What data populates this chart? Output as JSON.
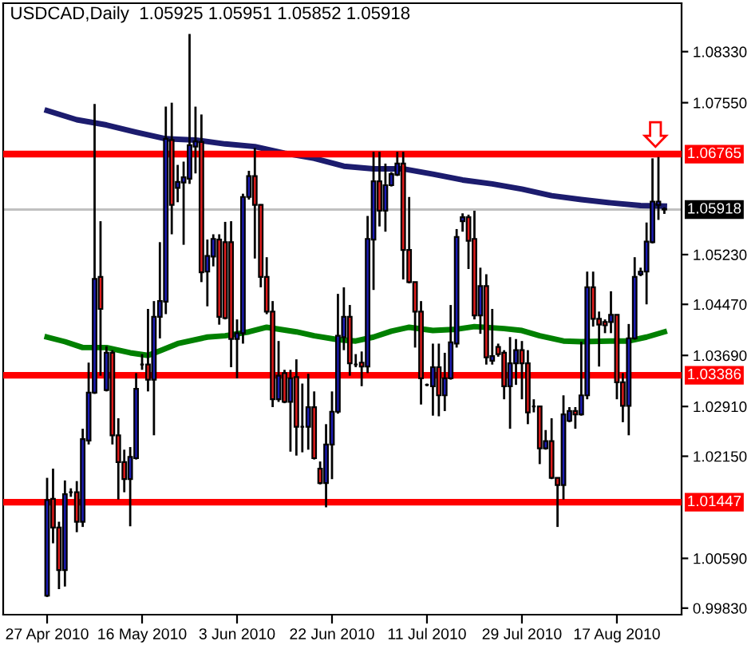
{
  "chart_data": {
    "type": "candlestick",
    "title": "USDCAD,Daily  1.05925 1.05951 1.05852 1.05918",
    "categories": [
      "27 Apr 2010",
      null,
      null,
      null,
      null,
      null,
      null,
      null,
      null,
      null,
      null,
      null,
      null,
      null,
      null,
      null,
      "16 May 2010",
      null,
      null,
      null,
      null,
      null,
      null,
      null,
      null,
      null,
      null,
      null,
      null,
      null,
      null,
      null,
      "3 Jun 2010",
      null,
      null,
      null,
      null,
      null,
      null,
      null,
      null,
      null,
      null,
      null,
      null,
      null,
      null,
      null,
      "22 Jun 2010",
      null,
      null,
      null,
      null,
      null,
      null,
      null,
      null,
      null,
      null,
      null,
      null,
      null,
      null,
      null,
      "11 Jul 2010",
      null,
      null,
      null,
      null,
      null,
      null,
      null,
      null,
      null,
      null,
      null,
      null,
      null,
      null,
      null,
      "29 Jul 2010",
      null,
      null,
      null,
      null,
      null,
      null,
      null,
      null,
      null,
      null,
      null,
      null,
      null,
      null,
      null,
      "17 Aug 2010",
      null,
      null,
      null,
      null,
      null,
      null,
      null,
      null
    ],
    "ohlc": [
      [
        1.0002,
        1.0182,
        1.0,
        1.0148
      ],
      [
        1.015,
        1.0196,
        1.0082,
        1.0106
      ],
      [
        1.0106,
        1.0115,
        1.0012,
        1.0041
      ],
      [
        1.0041,
        1.0178,
        1.0016,
        1.0157
      ],
      [
        1.016,
        1.0166,
        1.0153,
        1.016
      ],
      [
        1.016,
        1.0177,
        1.0099,
        1.0115
      ],
      [
        1.0115,
        1.0257,
        1.0107,
        1.0241
      ],
      [
        1.0239,
        1.0358,
        1.0233,
        1.0312
      ],
      [
        1.0312,
        1.0753,
        1.031,
        1.0486
      ],
      [
        1.0489,
        1.0574,
        1.0338,
        1.044
      ],
      [
        1.0316,
        1.0383,
        1.0314,
        1.0373
      ],
      [
        1.0373,
        1.0377,
        1.0233,
        1.0247
      ],
      [
        1.0247,
        1.0273,
        1.0149,
        1.0206
      ],
      [
        1.0206,
        1.0225,
        1.016,
        1.018
      ],
      [
        1.018,
        1.0229,
        1.0108,
        1.0214
      ],
      [
        1.0212,
        1.0342,
        1.021,
        1.0318
      ],
      [
        1.0355,
        1.0371,
        1.0347,
        1.0355
      ],
      [
        1.0355,
        1.044,
        1.0314,
        1.0332
      ],
      [
        1.0332,
        1.0452,
        1.0247,
        1.0428
      ],
      [
        1.0428,
        1.0542,
        1.0395,
        1.0452
      ],
      [
        1.0451,
        1.0749,
        1.0432,
        1.07
      ],
      [
        1.0698,
        1.0755,
        1.0554,
        1.0599
      ],
      [
        1.0625,
        1.066,
        1.0603,
        1.0634
      ],
      [
        1.0633,
        1.0665,
        1.0538,
        1.0641
      ],
      [
        1.0639,
        1.086,
        1.0631,
        1.069
      ],
      [
        1.0688,
        1.0749,
        1.0647,
        1.0696
      ],
      [
        1.0695,
        1.0737,
        1.0481,
        1.0496
      ],
      [
        1.0497,
        1.0546,
        1.0444,
        1.0521
      ],
      [
        1.052,
        1.0554,
        1.0505,
        1.0547
      ],
      [
        1.0546,
        1.0554,
        1.0416,
        1.0428
      ],
      [
        1.0542,
        1.0573,
        1.0424,
        1.0426
      ],
      [
        1.0542,
        1.0574,
        1.0351,
        1.0394
      ],
      [
        1.0394,
        1.0424,
        1.0334,
        1.0403
      ],
      [
        1.0403,
        1.0616,
        1.0387,
        1.0611
      ],
      [
        1.0611,
        1.0651,
        1.0607,
        1.0643
      ],
      [
        1.0643,
        1.0686,
        1.0517,
        1.0599
      ],
      [
        1.0599,
        1.06,
        1.0473,
        1.0489
      ],
      [
        1.0489,
        1.0519,
        1.0432,
        1.0436
      ],
      [
        1.0436,
        1.0452,
        1.029,
        1.0302
      ],
      [
        1.0302,
        1.0391,
        1.0298,
        1.0338
      ],
      [
        1.0342,
        1.0347,
        1.0296,
        1.0298
      ],
      [
        1.0298,
        1.0347,
        1.0222,
        1.0334
      ],
      [
        1.0336,
        1.0363,
        1.0216,
        1.026
      ],
      [
        1.026,
        1.0326,
        1.0221,
        1.026
      ],
      [
        1.026,
        1.0341,
        1.0225,
        1.029
      ],
      [
        1.029,
        1.0314,
        1.021,
        1.0212
      ],
      [
        1.0196,
        1.0207,
        1.0172,
        1.0174
      ],
      [
        1.0174,
        1.0264,
        1.0137,
        1.0233
      ],
      [
        1.0233,
        1.0314,
        1.018,
        1.0283
      ],
      [
        1.0283,
        1.0463,
        1.028,
        1.0399
      ],
      [
        1.0397,
        1.0473,
        1.0377,
        1.0428
      ],
      [
        1.0428,
        1.0446,
        1.0338,
        1.0357
      ],
      [
        1.0355,
        1.0371,
        1.0351,
        1.0355
      ],
      [
        1.0358,
        1.0375,
        1.0322,
        1.0352
      ],
      [
        1.0352,
        1.0582,
        1.0342,
        1.0547
      ],
      [
        1.0546,
        1.068,
        1.0469,
        1.0635
      ],
      [
        1.0635,
        1.068,
        1.0566,
        1.059
      ],
      [
        1.059,
        1.0662,
        1.0558,
        1.0629
      ],
      [
        1.0629,
        1.0649,
        1.0627,
        1.0646
      ],
      [
        1.0645,
        1.068,
        1.0643,
        1.0662
      ],
      [
        1.0662,
        1.068,
        1.0485,
        1.053
      ],
      [
        1.053,
        1.0611,
        1.0479,
        1.0481
      ],
      [
        1.0481,
        1.0481,
        1.0381,
        1.0436
      ],
      [
        1.0436,
        1.0452,
        1.0294,
        1.0334
      ],
      [
        1.0324,
        1.0326,
        1.0322,
        1.0324
      ],
      [
        1.0322,
        1.0387,
        1.0277,
        1.0351
      ],
      [
        1.0351,
        1.0387,
        1.0276,
        1.0308
      ],
      [
        1.0308,
        1.0373,
        1.0284,
        1.0334
      ],
      [
        1.0334,
        1.0446,
        1.0332,
        1.0389
      ],
      [
        1.0387,
        1.0562,
        1.0381,
        1.055
      ],
      [
        1.0574,
        1.0586,
        1.0558,
        1.058
      ],
      [
        1.058,
        1.0584,
        1.0501,
        1.0544
      ],
      [
        1.0547,
        1.059,
        1.0424,
        1.043
      ],
      [
        1.043,
        1.0503,
        1.0402,
        1.0475
      ],
      [
        1.0475,
        1.0493,
        1.0355,
        1.0366
      ],
      [
        1.0361,
        1.044,
        1.0355,
        1.0368
      ],
      [
        1.0382,
        1.0387,
        1.0367,
        1.0371
      ],
      [
        1.0373,
        1.0377,
        1.0302,
        1.0322
      ],
      [
        1.0322,
        1.0397,
        1.0257,
        1.0357
      ],
      [
        1.0357,
        1.0394,
        1.0324,
        1.0377
      ],
      [
        1.0377,
        1.0391,
        1.0302,
        1.0357
      ],
      [
        1.0357,
        1.0377,
        1.0264,
        1.0282
      ],
      [
        1.0291,
        1.0302,
        1.0282,
        1.0291
      ],
      [
        1.0291,
        1.0291,
        1.0203,
        1.0227
      ],
      [
        1.0227,
        1.0255,
        1.0225,
        1.0238
      ],
      [
        1.0238,
        1.0273,
        1.018,
        1.0182
      ],
      [
        1.0182,
        1.0182,
        1.0107,
        1.0171
      ],
      [
        1.0171,
        1.0308,
        1.0149,
        1.0279
      ],
      [
        1.0269,
        1.029,
        1.0267,
        1.0284
      ],
      [
        1.0284,
        1.029,
        1.0257,
        1.0279
      ],
      [
        1.0279,
        1.039,
        1.0277,
        1.0308
      ],
      [
        1.0308,
        1.0497,
        1.0302,
        1.0473
      ],
      [
        1.0473,
        1.0497,
        1.0413,
        1.0425
      ],
      [
        1.0425,
        1.0436,
        1.0352,
        1.0416
      ],
      [
        1.042,
        1.0424,
        1.0403,
        1.0415
      ],
      [
        1.042,
        1.0467,
        1.0403,
        1.0431
      ],
      [
        1.0431,
        1.0431,
        1.0302,
        1.0328
      ],
      [
        1.0328,
        1.0342,
        1.0267,
        1.0292
      ],
      [
        1.0292,
        1.0417,
        1.0247,
        1.0395
      ],
      [
        1.0395,
        1.0519,
        1.0393,
        1.0489
      ],
      [
        1.0493,
        1.0503,
        1.049,
        1.0497
      ],
      [
        1.0497,
        1.0572,
        1.0447,
        1.0543
      ],
      [
        1.0542,
        1.067,
        1.054,
        1.0604
      ],
      [
        1.0599,
        1.0672,
        1.0576,
        1.0604
      ],
      [
        1.05925,
        1.05951,
        1.05852,
        1.05918
      ]
    ],
    "colors": [
      "#1c1cb4",
      "#e01c1c",
      "#e01c1c",
      "#1c1cb4",
      "#000000",
      "#e01c1c",
      "#1c1cb4",
      "#1c1cb4",
      "#1c1cb4",
      "#e01c1c",
      "#1c1cb4",
      "#e01c1c",
      "#e01c1c",
      "#e01c1c",
      "#1c1cb4",
      "#1c1cb4",
      "#000000",
      "#e01c1c",
      "#1c1cb4",
      "#1c1cb4",
      "#1c1cb4",
      "#e01c1c",
      "#1c1cb4",
      "#1c1cb4",
      "#1c1cb4",
      "#1c1cb4",
      "#e01c1c",
      "#1c1cb4",
      "#1c1cb4",
      "#e01c1c",
      "#e01c1c",
      "#e01c1c",
      "#1c1cb4",
      "#1c1cb4",
      "#1c1cb4",
      "#e01c1c",
      "#e01c1c",
      "#e01c1c",
      "#e01c1c",
      "#1c1cb4",
      "#e01c1c",
      "#1c1cb4",
      "#e01c1c",
      "#000000",
      "#1c1cb4",
      "#e01c1c",
      "#e01c1c",
      "#1c1cb4",
      "#1c1cb4",
      "#1c1cb4",
      "#1c1cb4",
      "#e01c1c",
      "#000000",
      "#e01c1c",
      "#1c1cb4",
      "#1c1cb4",
      "#e01c1c",
      "#1c1cb4",
      "#1c1cb4",
      "#1c1cb4",
      "#e01c1c",
      "#e01c1c",
      "#e01c1c",
      "#e01c1c",
      "#000000",
      "#1c1cb4",
      "#e01c1c",
      "#1c1cb4",
      "#1c1cb4",
      "#1c1cb4",
      "#1c1cb4",
      "#e01c1c",
      "#e01c1c",
      "#1c1cb4",
      "#e01c1c",
      "#1c1cb4",
      "#e01c1c",
      "#e01c1c",
      "#1c1cb4",
      "#1c1cb4",
      "#e01c1c",
      "#e01c1c",
      "#000000",
      "#e01c1c",
      "#1c1cb4",
      "#e01c1c",
      "#e01c1c",
      "#1c1cb4",
      "#1c1cb4",
      "#e01c1c",
      "#1c1cb4",
      "#1c1cb4",
      "#e01c1c",
      "#e01c1c",
      "#e01c1c",
      "#1c1cb4",
      "#e01c1c",
      "#e01c1c",
      "#1c1cb4",
      "#1c1cb4",
      "#1c1cb4",
      "#1c1cb4",
      "#1c1cb4",
      "#1c1cb4",
      "#1c1cb4"
    ],
    "series": [
      {
        "type": "line",
        "color": "#1c1c6e",
        "values": [
          1.0743,
          null,
          null,
          null,
          null,
          1.0729,
          null,
          null,
          null,
          null,
          1.0721,
          null,
          null,
          null,
          null,
          1.071,
          null,
          null,
          null,
          null,
          1.07,
          null,
          null,
          null,
          null,
          1.0698,
          null,
          null,
          null,
          null,
          1.0692,
          null,
          null,
          null,
          null,
          1.0688,
          null,
          null,
          null,
          null,
          1.0678,
          null,
          null,
          null,
          null,
          1.067,
          null,
          null,
          null,
          null,
          1.0658,
          null,
          null,
          null,
          null,
          1.0654,
          null,
          null,
          null,
          null,
          1.0654,
          null,
          null,
          null,
          null,
          1.0646,
          null,
          null,
          null,
          null,
          1.0637,
          null,
          null,
          null,
          null,
          1.0631,
          null,
          null,
          null,
          null,
          1.0623,
          null,
          null,
          null,
          null,
          1.0613,
          null,
          null,
          null,
          null,
          1.0607,
          null,
          null,
          null,
          null,
          1.0602,
          null,
          null,
          null,
          null,
          1.0598,
          null,
          null,
          null,
          1.0597
        ]
      },
      {
        "type": "line",
        "color": "#008000",
        "values": [
          1.0397,
          null,
          null,
          1.039,
          null,
          null,
          1.0381,
          null,
          null,
          null,
          1.0381,
          null,
          null,
          null,
          1.0373,
          null,
          null,
          1.0369,
          null,
          1.0376,
          null,
          null,
          1.0387,
          null,
          null,
          null,
          null,
          1.0397,
          null,
          null,
          1.0399,
          null,
          null,
          null,
          1.0405,
          null,
          null,
          1.0412,
          null,
          null,
          null,
          null,
          1.0405,
          null,
          null,
          1.0399,
          null,
          null,
          null,
          1.0393,
          null,
          null,
          1.0391,
          null,
          null,
          1.0397,
          null,
          null,
          1.0406,
          null,
          null,
          1.0412,
          null,
          null,
          null,
          1.0407,
          null,
          null,
          null,
          1.0409,
          null,
          null,
          1.0413,
          null,
          null,
          null,
          null,
          1.041,
          null,
          null,
          1.0407,
          null,
          null,
          1.0399,
          null,
          null,
          null,
          1.0391,
          null,
          null,
          1.039,
          null,
          null,
          null,
          null,
          1.0391,
          null,
          null,
          1.0391,
          null,
          null,
          1.0397,
          null,
          null,
          1.0405
        ]
      }
    ],
    "ylim": [
      0.9973,
      1.0907
    ],
    "yticks": [
      {
        "value": 1.0833,
        "label": "1.08330"
      },
      {
        "value": 1.0755,
        "label": "1.07550"
      },
      {
        "value": 1.0523,
        "label": "1.05230"
      },
      {
        "value": 1.0447,
        "label": "1.04470"
      },
      {
        "value": 1.0369,
        "label": "1.03690"
      },
      {
        "value": 1.0291,
        "label": "1.02910"
      },
      {
        "value": 1.0215,
        "label": "1.02150"
      },
      {
        "value": 1.0059,
        "label": "1.00590"
      },
      {
        "value": 0.9983,
        "label": "0.99830"
      }
    ],
    "ref_lines": [
      {
        "axis": "y",
        "value": 1.06765,
        "label": "1.06765",
        "color": "#ff0000"
      },
      {
        "axis": "y",
        "value": 1.03386,
        "label": "1.03386",
        "color": "#ff0000"
      },
      {
        "axis": "y",
        "value": 1.01447,
        "label": "1.01447",
        "color": "#ff0000"
      },
      {
        "axis": "y",
        "value": 1.05918,
        "label": "1.05918",
        "color": "#c0c0c0"
      }
    ],
    "grid": false,
    "legend": false
  }
}
